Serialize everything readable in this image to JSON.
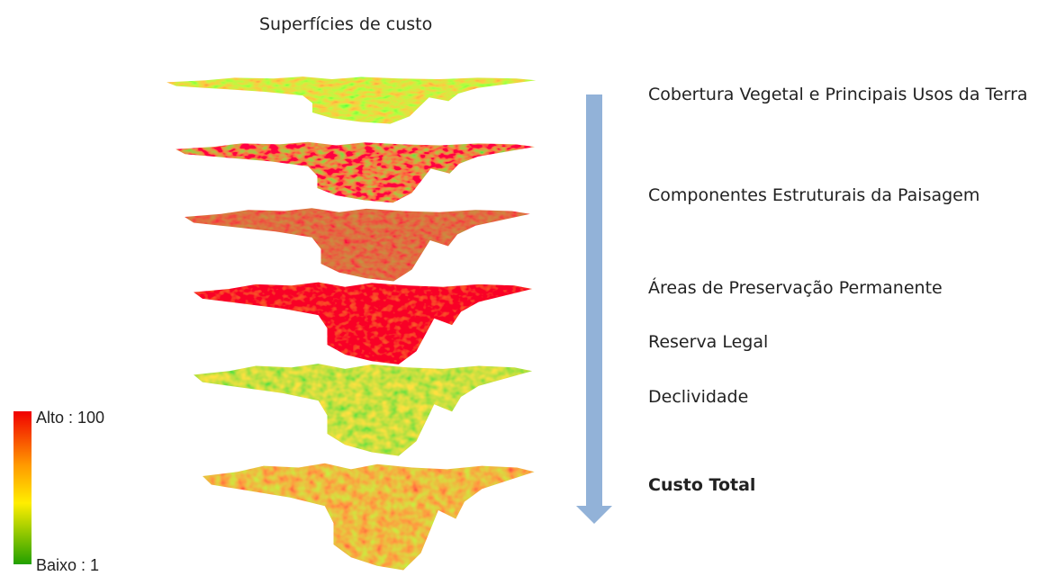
{
  "title": "Superfícies de custo",
  "layers": [
    {
      "label": "Cobertura Vegetal e Principais Usos da Terra"
    },
    {
      "label": "Componentes Estruturais da Paisagem"
    },
    {
      "label": "Áreas de Preservação Permanente"
    },
    {
      "label": "Reserva Legal"
    },
    {
      "label": "Declividade"
    }
  ],
  "result": {
    "label": "Custo Total"
  },
  "legend": {
    "high": "Alto : 100",
    "low": "Baixo : 1"
  }
}
